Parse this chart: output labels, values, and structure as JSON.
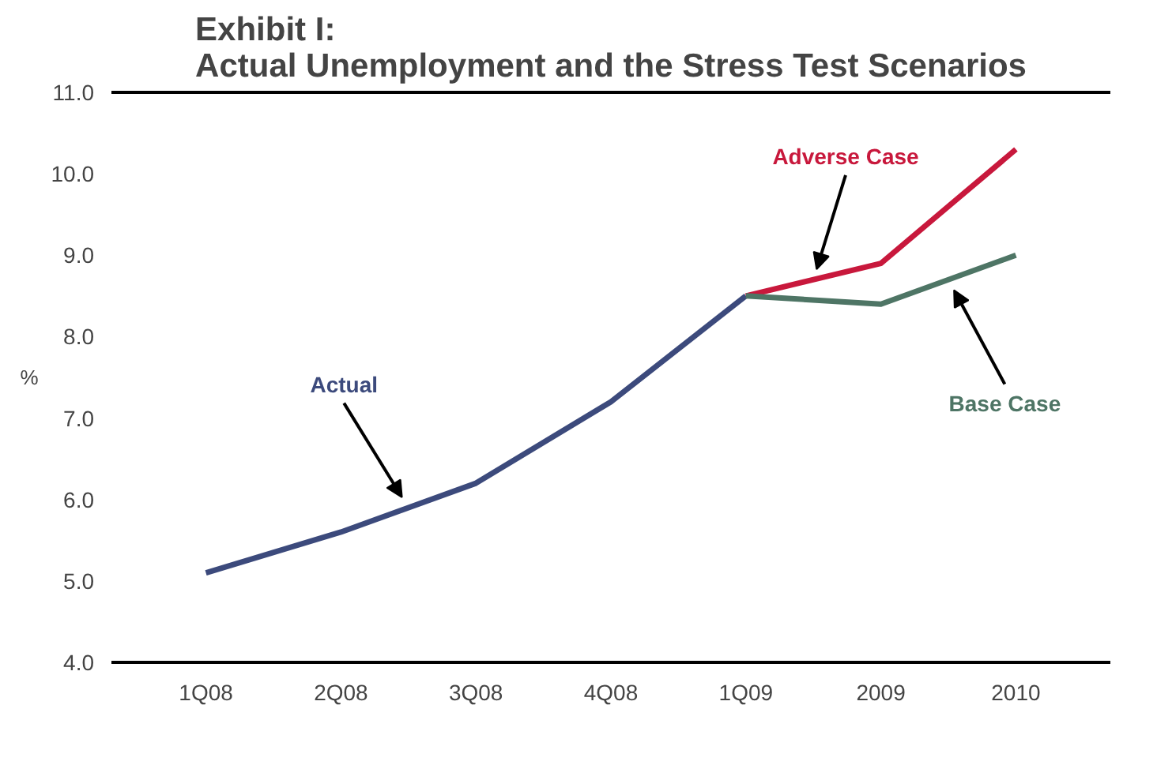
{
  "chart_data": {
    "type": "line",
    "title": "Exhibit I:\nActual Unemployment and the Stress Test Scenarios",
    "ylabel": "%",
    "categories": [
      "1Q08",
      "2Q08",
      "3Q08",
      "4Q08",
      "1Q09",
      "2009",
      "2010"
    ],
    "series": [
      {
        "name": "Actual",
        "color": "#3c4a7c",
        "values": [
          5.1,
          5.6,
          6.2,
          7.2,
          8.5,
          null,
          null
        ]
      },
      {
        "name": "Adverse Case",
        "color": "#c8183c",
        "values": [
          null,
          null,
          null,
          null,
          8.5,
          8.9,
          10.3
        ]
      },
      {
        "name": "Base Case",
        "color": "#4e7565",
        "values": [
          null,
          null,
          null,
          null,
          8.5,
          8.4,
          9.0
        ]
      }
    ],
    "ylim": [
      4,
      11
    ],
    "yticks": [
      {
        "value": 4,
        "label": "4.0"
      },
      {
        "value": 5,
        "label": "5.0"
      },
      {
        "value": 6,
        "label": "6.0"
      },
      {
        "value": 7,
        "label": "7.0"
      },
      {
        "value": 8,
        "label": "8.0"
      },
      {
        "value": 9,
        "label": "9.0"
      },
      {
        "value": 10,
        "label": "10.0"
      },
      {
        "value": 11,
        "label": "11.0"
      }
    ],
    "grid": false,
    "line_style": "solid",
    "marker": "none"
  }
}
